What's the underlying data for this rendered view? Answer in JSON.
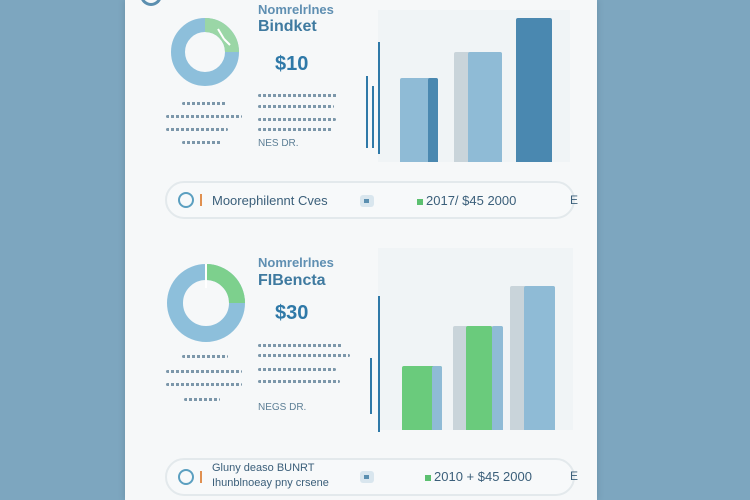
{
  "card1": {
    "title": "Nomrelrlnes",
    "subtitle": "Bindket",
    "amount": "$10",
    "caption": "NES DR.",
    "footer": {
      "label": "Moorephilennt Cves",
      "value": "2017/ $45 2000",
      "end_mark": "E"
    }
  },
  "card2": {
    "title": "Nomrelrlnes",
    "subtitle": "FIBencta",
    "amount": "$30",
    "caption": "NEGS DR.",
    "footer": {
      "label_line1": "Gluny deaso BUNRT",
      "label_line2": "Ihunblnoeay pny crsene",
      "value": "2010 + $45 2000",
      "end_mark": "E"
    }
  },
  "colors": {
    "background": "#7da6bf",
    "panel": "#f6f8f9",
    "bar_blue_dark": "#4a88b0",
    "bar_blue_light": "#8fbbd6",
    "bar_green": "#6acb7c",
    "donut_blue": "#8dbfdb",
    "donut_green": "#7dd08d"
  }
}
